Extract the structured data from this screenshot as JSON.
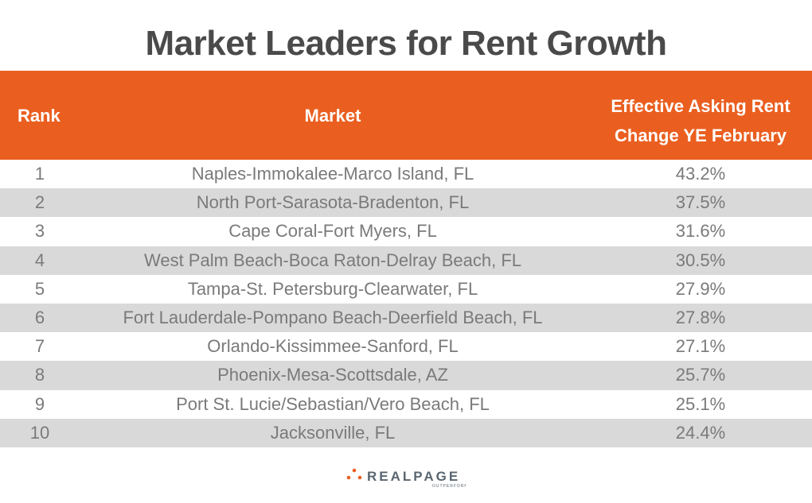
{
  "title": "Market Leaders for Rent Growth",
  "colors": {
    "header": "#ea5f20",
    "stripe": "#d9d9d9",
    "text": "#7a7a7a",
    "title": "#4a4a4a"
  },
  "chart_data": {
    "type": "table",
    "title": "Market Leaders for Rent Growth",
    "columns": [
      "Rank",
      "Market",
      "Effective Asking Rent Change YE February"
    ],
    "header": {
      "rank": "Rank",
      "market": "Market",
      "change_line1": "Effective Asking Rent",
      "change_line2": "Change YE February"
    },
    "rows": [
      {
        "rank": "1",
        "market": "Naples-Immokalee-Marco Island, FL",
        "change": "43.2%"
      },
      {
        "rank": "2",
        "market": "North Port-Sarasota-Bradenton, FL",
        "change": "37.5%"
      },
      {
        "rank": "3",
        "market": "Cape Coral-Fort Myers, FL",
        "change": "31.6%"
      },
      {
        "rank": "4",
        "market": "West Palm Beach-Boca Raton-Delray Beach, FL",
        "change": "30.5%"
      },
      {
        "rank": "5",
        "market": "Tampa-St. Petersburg-Clearwater, FL",
        "change": "27.9%"
      },
      {
        "rank": "6",
        "market": "Fort Lauderdale-Pompano Beach-Deerfield Beach, FL",
        "change": "27.8%"
      },
      {
        "rank": "7",
        "market": "Orlando-Kissimmee-Sanford, FL",
        "change": "27.1%"
      },
      {
        "rank": "8",
        "market": "Phoenix-Mesa-Scottsdale, AZ",
        "change": "25.7%"
      },
      {
        "rank": "9",
        "market": "Port St. Lucie/Sebastian/Vero Beach, FL",
        "change": "25.1%"
      },
      {
        "rank": "10",
        "market": "Jacksonville, FL",
        "change": "24.4%"
      }
    ]
  },
  "logo": {
    "name": "REALPAGE",
    "tagline": "OUTPERFORM"
  }
}
